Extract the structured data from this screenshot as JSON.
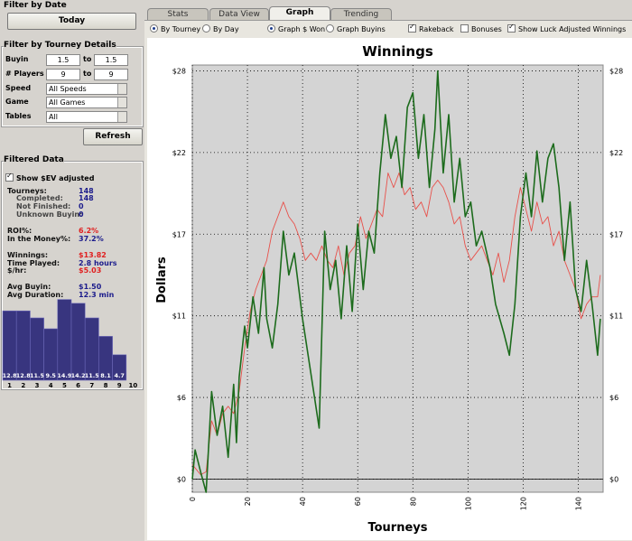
{
  "filter_by_date": {
    "title": "Filter by Date",
    "today_button": "Today"
  },
  "tourney_filter": {
    "title": "Filter by Tourney Details",
    "buyin": {
      "label": "Buyin",
      "min": "1.5",
      "sep": "to",
      "max": "1.5"
    },
    "players": {
      "label": "# Players",
      "min": "9",
      "sep": "to",
      "max": "9"
    },
    "speed": {
      "label": "Speed",
      "value": "All Speeds"
    },
    "game": {
      "label": "Game",
      "value": "All Games"
    },
    "tables": {
      "label": "Tables",
      "value": "All"
    },
    "refresh_button": "Refresh"
  },
  "filtered_data": {
    "title": "Filtered Data",
    "ev_checkbox": {
      "label": "Show $EV adjusted",
      "checked": true
    },
    "stats": [
      {
        "label": "Tourneys:",
        "value": "148"
      },
      {
        "label": "Completed:",
        "value": "148"
      },
      {
        "label": "Not Finished:",
        "value": "0"
      },
      {
        "label": "Unknown Buyin:",
        "value": "0"
      },
      {
        "label": "ROI%:",
        "value": "6.2%"
      },
      {
        "label": "In the Money%:",
        "value": "37.2%"
      },
      {
        "label": "Winnings:",
        "value": "$13.82"
      },
      {
        "label": "Time Played:",
        "value": "2.8 hours"
      },
      {
        "label": "$/hr:",
        "value": "$5.03"
      },
      {
        "label": "Avg Buyin:",
        "value": "$1.50"
      },
      {
        "label": "Avg Duration:",
        "value": "12.3 min"
      }
    ]
  },
  "tabs": [
    {
      "label": "Stats",
      "active": false
    },
    {
      "label": "Data View",
      "active": false
    },
    {
      "label": "Graph",
      "active": true
    },
    {
      "label": "Trending",
      "active": false
    }
  ],
  "options": [
    {
      "label": "By Tourney",
      "checked": true
    },
    {
      "label": "By Day",
      "checked": false
    },
    {
      "label": "Graph $ Won",
      "checked": true
    },
    {
      "label": "Graph Buyins",
      "checked": false
    },
    {
      "label": "Rakeback",
      "checked": true
    },
    {
      "label": "Bonuses",
      "checked": false
    },
    {
      "label": "Show Luck Adjusted Winnings",
      "checked": true
    }
  ],
  "chart_data": [
    {
      "type": "bar",
      "categories": [
        "1",
        "2",
        "3",
        "4",
        "5",
        "6",
        "7",
        "8",
        "9",
        "10"
      ],
      "values": [
        12.8,
        12.8,
        11.5,
        9.5,
        14.9,
        14.2,
        11.5,
        8.1,
        4.7,
        null
      ],
      "color": "#38357f"
    },
    {
      "type": "line",
      "title": "Winnings",
      "x_label": "Tourneys",
      "y_label": "Dollars",
      "xlim": [
        0,
        149
      ],
      "ylim": [
        -0.9,
        28.4
      ],
      "xticks": [
        0,
        20,
        40,
        60,
        80,
        100,
        120,
        140
      ],
      "yticks": [
        {
          "value": 0,
          "label": "$0"
        },
        {
          "value": 5.6,
          "label": "$6"
        },
        {
          "value": 11.2,
          "label": "$11"
        },
        {
          "value": 16.8,
          "label": "$17"
        },
        {
          "value": 22.4,
          "label": "$22"
        },
        {
          "value": 28,
          "label": "$28"
        }
      ],
      "grid": true,
      "series": [
        {
          "color": "#1c6b1c",
          "x": [
            0,
            1,
            3,
            5,
            7,
            9,
            11,
            13,
            15,
            16,
            17,
            19,
            20,
            22,
            24,
            26,
            27,
            29,
            31,
            33,
            35,
            37,
            40,
            44,
            46,
            48,
            50,
            52,
            54,
            56,
            58,
            60,
            62,
            64,
            66,
            68,
            70,
            72,
            74,
            76,
            78,
            80,
            82,
            84,
            86,
            88,
            89,
            91,
            93,
            95,
            97,
            99,
            101,
            103,
            105,
            108,
            110,
            113,
            115,
            117,
            119,
            121,
            123,
            125,
            127,
            129,
            131,
            133,
            135,
            137,
            139,
            141,
            143,
            145,
            147,
            148
          ],
          "values": [
            0,
            2,
            0.5,
            -0.9,
            6,
            3,
            5,
            1.5,
            6.5,
            2.5,
            7,
            10.5,
            9,
            12.5,
            10,
            14.5,
            11,
            9,
            12,
            17,
            14,
            15.5,
            11,
            6,
            3.5,
            17,
            13,
            15,
            11,
            16,
            11.5,
            17.5,
            13,
            17,
            15.5,
            21,
            25,
            22,
            23.5,
            20,
            25.5,
            26.5,
            22,
            25,
            20,
            24,
            28,
            21,
            25,
            19,
            22,
            18,
            19,
            16,
            17,
            14.5,
            12,
            10,
            8.5,
            12,
            18,
            21,
            18,
            22.5,
            19,
            22,
            23,
            20,
            15,
            19,
            13,
            11.5,
            15,
            12,
            8.5,
            11
          ]
        },
        {
          "color": "#e8504a",
          "x": [
            0,
            3,
            5,
            7,
            9,
            11,
            13,
            15,
            17,
            19,
            21,
            23,
            25,
            27,
            29,
            31,
            33,
            35,
            37,
            39,
            41,
            43,
            45,
            47,
            49,
            51,
            53,
            55,
            57,
            59,
            61,
            63,
            65,
            67,
            69,
            71,
            73,
            75,
            77,
            79,
            81,
            83,
            85,
            87,
            89,
            91,
            93,
            95,
            97,
            99,
            101,
            103,
            105,
            107,
            109,
            111,
            113,
            115,
            117,
            119,
            121,
            123,
            125,
            127,
            129,
            131,
            133,
            135,
            137,
            139,
            141,
            143,
            145,
            147,
            148
          ],
          "values": [
            1,
            0.3,
            0.5,
            4,
            3,
            4.5,
            5,
            4.5,
            6,
            9,
            11.5,
            13,
            14,
            15,
            17,
            18,
            19,
            18,
            17.5,
            16.5,
            15,
            15.5,
            15,
            16,
            15,
            14.5,
            16,
            14,
            15.5,
            16,
            18,
            16.5,
            17.5,
            18.5,
            18,
            21,
            20,
            21,
            19.5,
            20,
            18.5,
            19,
            18,
            20,
            20.5,
            20,
            19,
            17.5,
            18,
            16,
            15,
            15.5,
            16,
            15,
            14,
            15.5,
            13.5,
            15,
            18,
            20,
            18.5,
            17,
            19,
            17.5,
            18,
            16,
            17,
            15,
            14,
            13,
            11,
            12,
            12.5,
            12.5,
            14
          ]
        }
      ]
    }
  ]
}
